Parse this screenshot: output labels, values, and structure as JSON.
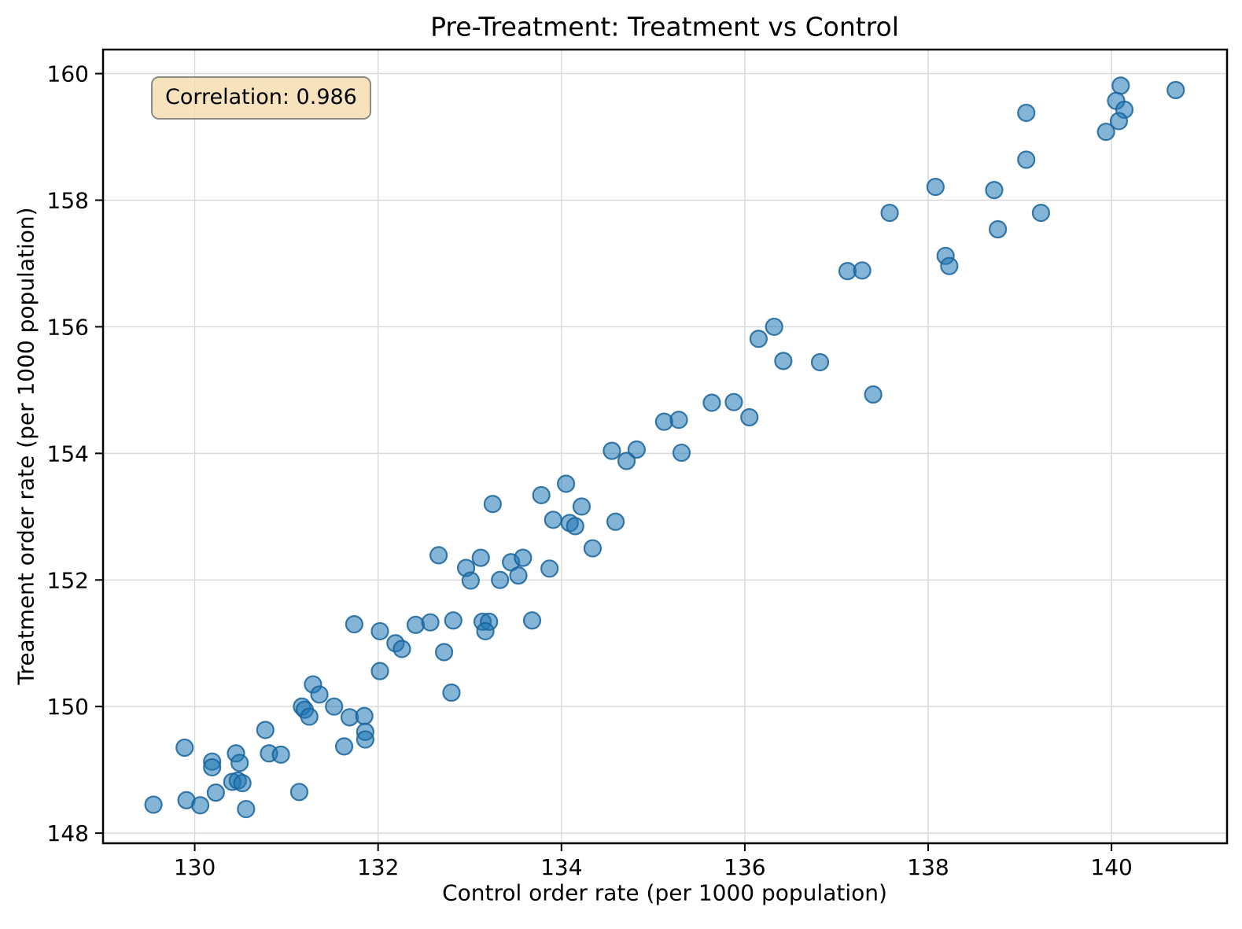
{
  "figure": {
    "background": "#ffffff"
  },
  "annotation": {
    "label": "Correlation: 0.986",
    "bg_color": "#f5deb3",
    "border_color": "#8c8c85"
  },
  "chart_data": {
    "type": "scatter",
    "title": "Pre-Treatment: Treatment vs Control",
    "xlabel": "Control order rate (per 1000 population)",
    "ylabel": "Treatment order rate (per 1000 population)",
    "xlim": [
      129.0,
      141.26
    ],
    "ylim": [
      147.84,
      160.38
    ],
    "xticks": [
      130,
      132,
      134,
      136,
      138,
      140
    ],
    "yticks": [
      148,
      150,
      152,
      154,
      156,
      158,
      160
    ],
    "grid": true,
    "legend_position": "none",
    "correlation": 0.986,
    "marker": {
      "color": "#1f77b4",
      "edge_color": "#17649b",
      "alpha": 0.55
    },
    "grid_color": "#d8d8d8",
    "spine_color": "#000000",
    "points": [
      [
        129.55,
        148.45
      ],
      [
        129.91,
        148.52
      ],
      [
        130.06,
        148.44
      ],
      [
        129.89,
        149.35
      ],
      [
        130.19,
        149.13
      ],
      [
        130.19,
        149.04
      ],
      [
        130.23,
        148.64
      ],
      [
        130.45,
        149.26
      ],
      [
        130.41,
        148.81
      ],
      [
        130.47,
        148.83
      ],
      [
        130.52,
        148.79
      ],
      [
        130.49,
        149.11
      ],
      [
        130.56,
        148.38
      ],
      [
        130.77,
        149.63
      ],
      [
        130.81,
        149.26
      ],
      [
        130.94,
        149.24
      ],
      [
        131.14,
        148.65
      ],
      [
        131.17,
        150.0
      ],
      [
        131.2,
        149.95
      ],
      [
        131.25,
        149.84
      ],
      [
        131.29,
        150.35
      ],
      [
        131.36,
        150.19
      ],
      [
        131.52,
        150.0
      ],
      [
        131.69,
        149.83
      ],
      [
        131.63,
        149.37
      ],
      [
        131.85,
        149.85
      ],
      [
        131.86,
        149.6
      ],
      [
        131.86,
        149.48
      ],
      [
        131.74,
        151.3
      ],
      [
        132.02,
        151.19
      ],
      [
        132.19,
        151.0
      ],
      [
        132.26,
        150.91
      ],
      [
        132.41,
        151.29
      ],
      [
        132.57,
        151.33
      ],
      [
        132.82,
        151.36
      ],
      [
        132.72,
        150.86
      ],
      [
        132.02,
        150.56
      ],
      [
        132.8,
        150.22
      ],
      [
        133.14,
        151.34
      ],
      [
        133.21,
        151.34
      ],
      [
        133.17,
        151.19
      ],
      [
        133.68,
        151.36
      ],
      [
        132.66,
        152.39
      ],
      [
        133.12,
        152.35
      ],
      [
        132.96,
        152.19
      ],
      [
        133.45,
        152.28
      ],
      [
        133.58,
        152.35
      ],
      [
        133.01,
        151.99
      ],
      [
        133.33,
        152.0
      ],
      [
        133.53,
        152.07
      ],
      [
        133.87,
        152.18
      ],
      [
        133.25,
        153.2
      ],
      [
        133.78,
        153.34
      ],
      [
        134.05,
        153.52
      ],
      [
        134.22,
        153.16
      ],
      [
        133.91,
        152.95
      ],
      [
        134.09,
        152.9
      ],
      [
        134.15,
        152.85
      ],
      [
        134.59,
        152.92
      ],
      [
        134.34,
        152.5
      ],
      [
        134.55,
        154.04
      ],
      [
        134.82,
        154.06
      ],
      [
        134.71,
        153.88
      ],
      [
        135.12,
        154.5
      ],
      [
        135.28,
        154.53
      ],
      [
        135.31,
        154.01
      ],
      [
        135.64,
        154.8
      ],
      [
        135.88,
        154.81
      ],
      [
        136.05,
        154.57
      ],
      [
        136.42,
        155.46
      ],
      [
        136.82,
        155.44
      ],
      [
        137.4,
        154.93
      ],
      [
        136.32,
        156.0
      ],
      [
        136.15,
        155.81
      ],
      [
        137.12,
        156.88
      ],
      [
        137.28,
        156.89
      ],
      [
        138.19,
        157.12
      ],
      [
        138.23,
        156.96
      ],
      [
        137.58,
        157.8
      ],
      [
        138.08,
        158.21
      ],
      [
        138.72,
        158.16
      ],
      [
        138.76,
        157.54
      ],
      [
        139.07,
        159.38
      ],
      [
        139.07,
        158.64
      ],
      [
        139.23,
        157.8
      ],
      [
        140.1,
        159.81
      ],
      [
        140.05,
        159.57
      ],
      [
        140.14,
        159.43
      ],
      [
        140.08,
        159.25
      ],
      [
        139.94,
        159.08
      ],
      [
        140.7,
        159.74
      ]
    ]
  }
}
